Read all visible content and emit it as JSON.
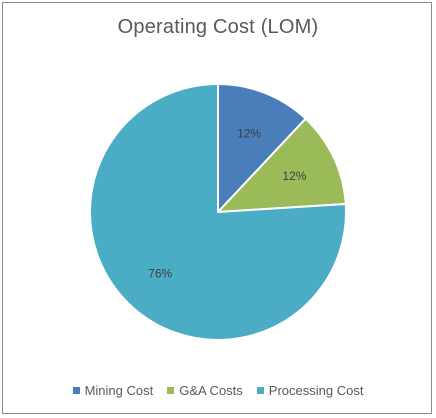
{
  "chart_data": {
    "type": "pie",
    "title": "Operating Cost (LOM)",
    "slices": [
      {
        "label": "Mining Cost",
        "value": 12,
        "display": "12%",
        "color": "#4a7ebb"
      },
      {
        "label": "G&A Costs",
        "value": 12,
        "display": "12%",
        "color": "#9bbb59"
      },
      {
        "label": "Processing Cost",
        "value": 76,
        "display": "76%",
        "color": "#4bacc6"
      }
    ],
    "legend_position": "bottom",
    "start_angle_deg": 0,
    "direction": "clockwise"
  }
}
